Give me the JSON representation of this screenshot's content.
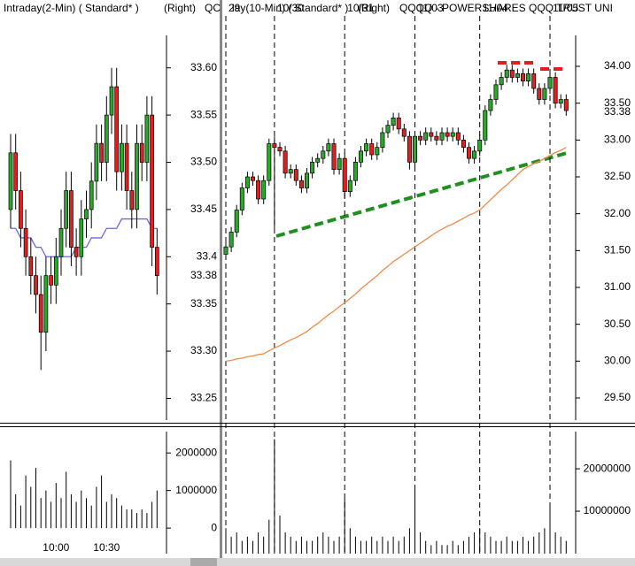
{
  "chart_data": [
    {
      "type": "candlestick",
      "title": "Intraday(2-Min) ( Standard* )",
      "subtitle": "(Right)",
      "categories": [
        null,
        null,
        null,
        null,
        null,
        null,
        null,
        null,
        null,
        "10:00",
        null,
        null,
        null,
        null,
        null,
        null,
        null,
        null,
        null,
        "10:30",
        null,
        null,
        null,
        null,
        null,
        null,
        null,
        null,
        null,
        null
      ],
      "category_position": "bottom",
      "date_lines": false,
      "open": [
        33.45,
        33.51,
        33.47,
        33.43,
        33.4,
        33.38,
        33.36,
        33.32,
        33.38,
        33.37,
        33.4,
        33.43,
        33.47,
        33.41,
        33.4,
        33.44,
        33.45,
        33.48,
        33.52,
        33.5,
        33.55,
        33.58,
        33.49,
        33.52,
        33.47,
        33.45,
        33.52,
        33.5,
        33.55,
        33.41
      ],
      "high": [
        33.53,
        33.53,
        33.49,
        33.45,
        33.42,
        33.4,
        33.38,
        33.4,
        33.4,
        33.42,
        33.45,
        33.49,
        33.49,
        33.43,
        33.46,
        33.47,
        33.5,
        33.54,
        33.54,
        33.57,
        33.6,
        33.6,
        33.54,
        33.54,
        33.49,
        33.54,
        33.54,
        33.57,
        33.57,
        33.43
      ],
      "low": [
        33.43,
        33.45,
        33.41,
        33.38,
        33.36,
        33.34,
        33.28,
        33.3,
        33.35,
        33.35,
        33.38,
        33.41,
        33.39,
        33.38,
        33.38,
        33.42,
        33.43,
        33.46,
        33.48,
        33.48,
        33.53,
        33.47,
        33.47,
        33.45,
        33.43,
        33.43,
        33.48,
        33.48,
        33.39,
        33.36
      ],
      "close": [
        33.51,
        33.47,
        33.43,
        33.4,
        33.38,
        33.36,
        33.32,
        33.38,
        33.37,
        33.4,
        33.43,
        33.47,
        33.41,
        33.4,
        33.44,
        33.45,
        33.48,
        33.52,
        33.5,
        33.55,
        33.58,
        33.49,
        33.52,
        33.47,
        33.45,
        33.52,
        33.5,
        33.55,
        33.41,
        33.38
      ],
      "up_color": "#2ea52e",
      "down_color": "#e02020",
      "ma": {
        "color": "#6a6ae0",
        "values": [
          33.43,
          33.43,
          33.42,
          33.42,
          33.42,
          33.41,
          33.41,
          33.4,
          33.4,
          33.4,
          33.4,
          33.4,
          33.4,
          33.41,
          33.41,
          33.41,
          33.42,
          33.42,
          33.42,
          33.43,
          33.43,
          33.43,
          33.44,
          33.44,
          33.44,
          33.44,
          33.44,
          33.44,
          33.43,
          33.43
        ]
      },
      "ylim": [
        33.227,
        33.655
      ],
      "yticks": [
        {
          "value": 33.25,
          "label": "33.25"
        },
        {
          "value": 33.3,
          "label": "33.30"
        },
        {
          "value": 33.35,
          "label": "33.35"
        },
        33.4,
        {
          "value": 33.45,
          "label": "33.45"
        },
        {
          "value": 33.5,
          "label": "33.50"
        },
        {
          "value": 33.55,
          "label": "33.55"
        },
        {
          "value": 33.6,
          "label": "33.60"
        }
      ],
      "last_price": 33.38,
      "volume": {
        "color": "#000000",
        "values": [
          1800000,
          900000,
          600000,
          1400000,
          1100000,
          1600000,
          800000,
          1000000,
          700000,
          1200000,
          800000,
          1500000,
          900000,
          700000,
          1000000,
          800000,
          600000,
          1100000,
          1400000,
          700000,
          900000,
          800000,
          600000,
          500000,
          500000,
          400000,
          500000,
          400000,
          700000,
          1000000
        ],
        "ylim": [
          -680000,
          2640000
        ],
        "yticks": [
          0,
          1000000,
          2000000
        ]
      }
    },
    {
      "type": "candlestick",
      "title": "lay(10-Min) ( Standard* )",
      "subtitle": "(Right)",
      "title_prefix": "QC",
      "security": "QQQQ - POWERSHARES QQQ TRUST UNI",
      "categories": [
        "29",
        null,
        null,
        null,
        null,
        null,
        null,
        null,
        null,
        "10/30",
        null,
        null,
        null,
        null,
        null,
        null,
        null,
        null,
        null,
        null,
        null,
        null,
        "10/31",
        null,
        null,
        null,
        null,
        null,
        null,
        null,
        null,
        null,
        null,
        null,
        null,
        "11/03",
        null,
        null,
        null,
        null,
        null,
        null,
        null,
        null,
        null,
        null,
        null,
        "11/04",
        null,
        null,
        null,
        null,
        null,
        null,
        null,
        null,
        null,
        null,
        null,
        null,
        "11/05",
        null,
        null,
        null
      ],
      "category_position": "top",
      "date_lines": true,
      "open": [
        31.45,
        31.55,
        31.75,
        32.05,
        32.35,
        32.5,
        32.45,
        32.2,
        32.45,
        32.95,
        32.9,
        32.85,
        32.55,
        32.6,
        32.45,
        32.35,
        32.55,
        32.7,
        32.75,
        32.85,
        32.95,
        32.6,
        32.75,
        32.3,
        32.45,
        32.7,
        32.85,
        32.95,
        32.8,
        32.9,
        33.1,
        33.2,
        33.3,
        33.15,
        33.05,
        32.7,
        33.05,
        33.0,
        33.1,
        33.05,
        33.0,
        33.1,
        33.05,
        33.1,
        33.0,
        32.9,
        32.75,
        32.85,
        33.0,
        33.4,
        33.55,
        33.75,
        33.85,
        33.95,
        33.85,
        33.9,
        33.8,
        33.9,
        33.7,
        33.55,
        33.7,
        33.85,
        33.5,
        33.55
      ],
      "high": [
        31.62,
        31.82,
        32.12,
        32.42,
        32.57,
        32.57,
        32.52,
        32.52,
        33.02,
        33.05,
        32.97,
        32.92,
        32.67,
        32.67,
        32.52,
        32.62,
        32.77,
        32.82,
        32.92,
        33.02,
        33.02,
        32.82,
        32.82,
        32.52,
        32.77,
        32.92,
        33.02,
        33.02,
        32.97,
        33.17,
        33.27,
        33.37,
        33.37,
        33.22,
        33.12,
        33.12,
        33.12,
        33.17,
        33.17,
        33.12,
        33.17,
        33.17,
        33.17,
        33.17,
        33.07,
        32.97,
        32.92,
        33.07,
        33.47,
        33.62,
        33.82,
        33.92,
        34.02,
        34.02,
        33.97,
        33.97,
        33.97,
        33.97,
        33.77,
        33.77,
        33.92,
        33.92,
        33.62,
        33.62
      ],
      "low": [
        31.38,
        31.48,
        31.68,
        31.98,
        32.28,
        32.38,
        32.13,
        32.13,
        32.38,
        31.8,
        32.78,
        32.48,
        32.48,
        32.38,
        32.28,
        32.28,
        32.48,
        32.63,
        32.68,
        32.78,
        32.53,
        32.53,
        32.2,
        32.23,
        32.38,
        32.63,
        32.78,
        32.73,
        32.73,
        32.83,
        33.03,
        33.13,
        33.08,
        32.98,
        32.6,
        32.63,
        32.93,
        32.93,
        32.98,
        32.93,
        32.93,
        32.98,
        32.98,
        32.93,
        32.83,
        32.68,
        32.68,
        32.78,
        32.93,
        33.33,
        33.48,
        33.68,
        33.78,
        33.78,
        33.78,
        33.73,
        33.73,
        33.63,
        33.48,
        33.48,
        33.63,
        33.43,
        33.43,
        33.33
      ],
      "close": [
        31.55,
        31.75,
        32.05,
        32.35,
        32.5,
        32.45,
        32.2,
        32.45,
        32.95,
        32.9,
        32.85,
        32.55,
        32.6,
        32.45,
        32.35,
        32.55,
        32.7,
        32.75,
        32.85,
        32.95,
        32.6,
        32.75,
        32.3,
        32.45,
        32.7,
        32.85,
        32.95,
        32.8,
        32.9,
        33.1,
        33.2,
        33.3,
        33.15,
        33.05,
        32.7,
        33.05,
        33.0,
        33.1,
        33.05,
        33.0,
        33.1,
        33.05,
        33.1,
        33.0,
        32.9,
        32.75,
        32.85,
        33.0,
        33.4,
        33.55,
        33.75,
        33.85,
        33.95,
        33.85,
        33.9,
        33.8,
        33.9,
        33.7,
        33.55,
        33.7,
        33.85,
        33.5,
        33.55,
        33.4
      ],
      "up_color": "#2ea52e",
      "down_color": "#e02020",
      "ma": {
        "color": "#f08a4a",
        "values": [
          30.0,
          30.01,
          30.03,
          30.04,
          30.06,
          30.07,
          30.09,
          30.1,
          30.14,
          30.18,
          30.21,
          30.25,
          30.29,
          30.32,
          30.36,
          30.4,
          30.46,
          30.51,
          30.57,
          30.63,
          30.68,
          30.74,
          30.79,
          30.85,
          30.91,
          30.98,
          31.04,
          31.1,
          31.16,
          31.23,
          31.29,
          31.35,
          31.4,
          31.45,
          31.5,
          31.55,
          31.6,
          31.65,
          31.7,
          31.75,
          31.79,
          31.83,
          31.86,
          31.9,
          31.94,
          31.98,
          32.01,
          32.05,
          32.12,
          32.19,
          32.26,
          32.33,
          32.39,
          32.46,
          32.53,
          32.6,
          32.64,
          32.68,
          32.71,
          32.75,
          32.79,
          32.83,
          32.86,
          32.9
        ]
      },
      "ylim": [
        29.2,
        34.684
      ],
      "yticks": [
        {
          "value": 29.5,
          "label": "29.50"
        },
        {
          "value": 30,
          "label": "30.00"
        },
        {
          "value": 30.5,
          "label": "30.50"
        },
        {
          "value": 31,
          "label": "31.00"
        },
        {
          "value": 31.5,
          "label": "31.50"
        },
        {
          "value": 32,
          "label": "32.00"
        },
        {
          "value": 32.5,
          "label": "32.50"
        },
        {
          "value": 33,
          "label": "33.00"
        },
        {
          "value": 33.5,
          "label": "33.50"
        },
        {
          "value": 34,
          "label": "34.00"
        }
      ],
      "last_price": 33.38,
      "volume": {
        "color": "#000000",
        "values": [
          6000000,
          4000000,
          5000000,
          3000000,
          4000000,
          3000000,
          5000000,
          4000000,
          8000000,
          27000000,
          9000000,
          5000000,
          4000000,
          3000000,
          4000000,
          3000000,
          3000000,
          4000000,
          5000000,
          4000000,
          3000000,
          4000000,
          13000000,
          6000000,
          4000000,
          3000000,
          3000000,
          4000000,
          3000000,
          4000000,
          3000000,
          4000000,
          3000000,
          4000000,
          6000000,
          15000000,
          5000000,
          3000000,
          2000000,
          3000000,
          2000000,
          2000000,
          3000000,
          2000000,
          3000000,
          4000000,
          5000000,
          6000000,
          5000000,
          4000000,
          3000000,
          3000000,
          4000000,
          3000000,
          3000000,
          4000000,
          3000000,
          4000000,
          5000000,
          6000000,
          11000000,
          5000000,
          4000000,
          3000000
        ],
        "ylim": [
          0,
          29400000
        ],
        "yticks": [
          10000000,
          20000000
        ]
      }
    }
  ]
}
